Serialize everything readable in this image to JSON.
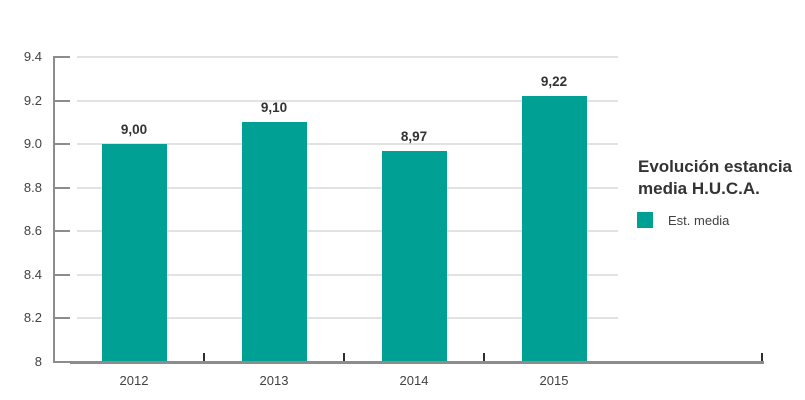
{
  "chart_data": {
    "type": "bar",
    "title": "Evolución estancia media H.U.C.A.",
    "categories": [
      "2012",
      "2013",
      "2014",
      "2015"
    ],
    "series": [
      {
        "name": "Est. media",
        "values": [
          9.0,
          9.1,
          8.97,
          9.22
        ],
        "value_labels": [
          "9,00",
          "9,10",
          "8,97",
          "9,22"
        ]
      }
    ],
    "xlabel": "",
    "ylabel": "",
    "ylim": [
      8,
      9.4
    ],
    "ytick_step": 0.2,
    "ytick_labels": [
      "8",
      "8.2",
      "8.4",
      "8.6",
      "8.8",
      "9.0",
      "9.2",
      "9.4"
    ],
    "grid": true,
    "legend_position": "right",
    "bar_color": "#00a094"
  },
  "colors": {
    "accent_teal": "#00a094",
    "grid_gray": "#e2e2e2",
    "axis_gray": "#8c8c8c",
    "text_dark": "#333333"
  }
}
